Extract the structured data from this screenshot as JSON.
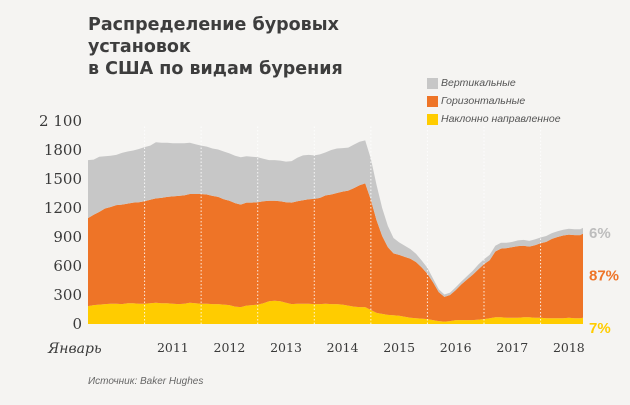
{
  "title": {
    "line1": "Распределение буровых установок",
    "line2": "в США по видам бурения"
  },
  "legend": [
    {
      "label": "Вертикальные",
      "color": "#c7c7c7"
    },
    {
      "label": "Горизонтальные",
      "color": "#ee7427"
    },
    {
      "label": "Наклонно направленное",
      "color": "#ffcc00"
    }
  ],
  "source": "Источник: Baker Hughes",
  "chart_data": {
    "type": "area",
    "stacked": true,
    "title": "Распределение буровых установок в США по видам бурения",
    "ylim": [
      0,
      2100
    ],
    "yticks": [
      "2 100",
      "1800",
      "1500",
      "1200",
      "900",
      "600",
      "300",
      "0"
    ],
    "ytick_values": [
      2100,
      1800,
      1500,
      1200,
      900,
      600,
      300,
      0
    ],
    "xticks": [
      "Январь",
      "2011",
      "2012",
      "2013",
      "2014",
      "2015",
      "2016",
      "2017",
      "2018"
    ],
    "xlim": [
      2010.0,
      2018.75
    ],
    "grid": "vertical dotted lines at year starts",
    "x": [
      2010.0,
      2010.1,
      2010.2,
      2010.3,
      2010.4,
      2010.5,
      2010.6,
      2010.7,
      2010.8,
      2010.9,
      2011.0,
      2011.1,
      2011.2,
      2011.3,
      2011.4,
      2011.5,
      2011.6,
      2011.7,
      2011.8,
      2011.9,
      2012.0,
      2012.1,
      2012.2,
      2012.3,
      2012.4,
      2012.5,
      2012.6,
      2012.7,
      2012.8,
      2012.9,
      2013.0,
      2013.1,
      2013.2,
      2013.3,
      2013.4,
      2013.5,
      2013.6,
      2013.7,
      2013.8,
      2013.9,
      2014.0,
      2014.1,
      2014.2,
      2014.3,
      2014.4,
      2014.5,
      2014.6,
      2014.7,
      2014.8,
      2014.9,
      2015.0,
      2015.1,
      2015.2,
      2015.3,
      2015.4,
      2015.5,
      2015.6,
      2015.7,
      2015.8,
      2015.9,
      2016.0,
      2016.1,
      2016.2,
      2016.3,
      2016.4,
      2016.5,
      2016.6,
      2016.7,
      2016.8,
      2016.9,
      2017.0,
      2017.1,
      2017.2,
      2017.3,
      2017.4,
      2017.5,
      2017.6,
      2017.7,
      2017.8,
      2017.9,
      2018.0,
      2018.1,
      2018.2,
      2018.3,
      2018.4,
      2018.5,
      2018.6,
      2018.7,
      2018.75
    ],
    "series": [
      {
        "name": "Наклонно направленное",
        "color": "#ffcc00",
        "values": [
          185,
          195,
          200,
          205,
          210,
          210,
          205,
          215,
          215,
          210,
          210,
          215,
          220,
          215,
          215,
          210,
          205,
          210,
          220,
          215,
          210,
          210,
          205,
          205,
          200,
          195,
          180,
          175,
          190,
          195,
          200,
          215,
          235,
          240,
          235,
          220,
          205,
          210,
          210,
          210,
          205,
          205,
          210,
          205,
          205,
          200,
          190,
          180,
          175,
          175,
          145,
          115,
          105,
          95,
          90,
          85,
          75,
          65,
          60,
          55,
          50,
          40,
          30,
          25,
          30,
          40,
          40,
          40,
          40,
          45,
          50,
          60,
          70,
          70,
          65,
          65,
          65,
          70,
          70,
          65,
          65,
          60,
          60,
          60,
          60,
          65,
          60,
          60,
          65
        ]
      },
      {
        "name": "Горизонтальные",
        "color": "#ee7427",
        "values": [
          910,
          935,
          960,
          990,
          1000,
          1020,
          1030,
          1030,
          1040,
          1050,
          1060,
          1070,
          1080,
          1090,
          1100,
          1110,
          1120,
          1120,
          1125,
          1130,
          1135,
          1130,
          1120,
          1110,
          1090,
          1080,
          1070,
          1060,
          1065,
          1060,
          1060,
          1055,
          1040,
          1035,
          1035,
          1040,
          1050,
          1060,
          1070,
          1080,
          1090,
          1100,
          1120,
          1135,
          1150,
          1170,
          1190,
          1225,
          1260,
          1280,
          1140,
          960,
          805,
          700,
          640,
          630,
          620,
          610,
          580,
          530,
          470,
          390,
          300,
          255,
          270,
          310,
          370,
          420,
          470,
          520,
          570,
          600,
          680,
          710,
          720,
          730,
          740,
          740,
          730,
          750,
          770,
          790,
          820,
          840,
          855,
          860,
          860,
          860,
          870
        ]
      },
      {
        "name": "Вертикальные",
        "color": "#c7c7c7",
        "values": [
          600,
          570,
          570,
          540,
          530,
          520,
          535,
          540,
          540,
          550,
          560,
          560,
          580,
          570,
          560,
          550,
          545,
          540,
          530,
          515,
          500,
          495,
          490,
          490,
          495,
          490,
          490,
          490,
          480,
          475,
          465,
          440,
          420,
          420,
          420,
          420,
          430,
          450,
          465,
          460,
          450,
          450,
          445,
          460,
          460,
          450,
          445,
          450,
          450,
          445,
          425,
          365,
          290,
          220,
          160,
          130,
          115,
          100,
          85,
          70,
          60,
          40,
          30,
          25,
          25,
          30,
          30,
          35,
          40,
          50,
          50,
          55,
          60,
          60,
          55,
          55,
          60,
          60,
          60,
          60,
          60,
          60,
          60,
          60,
          60,
          60,
          60,
          60,
          60
        ]
      }
    ],
    "end_labels": [
      {
        "text": "6%",
        "series": "Вертикальные",
        "color": "#bdbdbd"
      },
      {
        "text": "87%",
        "series": "Горизонтальные",
        "color": "#ee7427"
      },
      {
        "text": "7%",
        "series": "Наклонно направленное",
        "color": "#ffcc00"
      }
    ]
  }
}
